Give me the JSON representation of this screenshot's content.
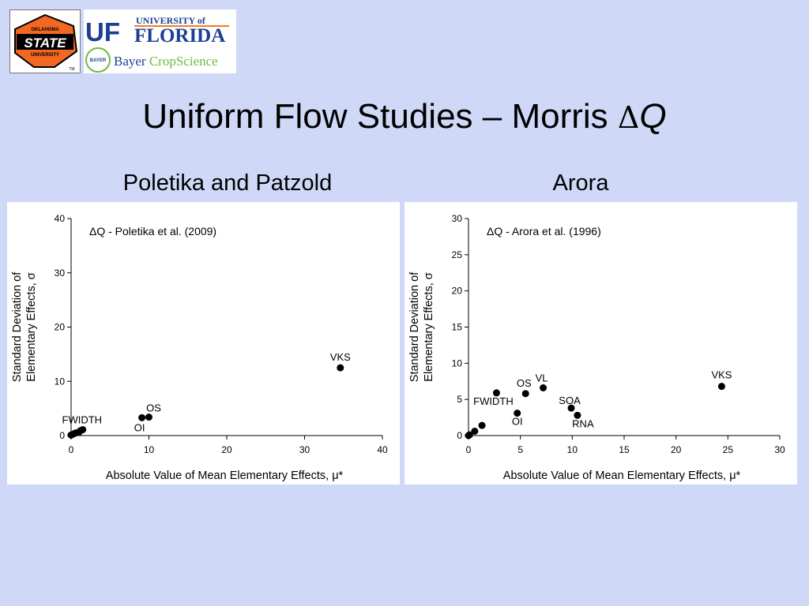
{
  "header": {
    "title": "Uniform Flow Studies – Morris ",
    "title_delta": "Δ",
    "title_var": "Q"
  },
  "logos": {
    "osu": {
      "line1": "OKLAHOMA",
      "line2": "STATE",
      "line3": "UNIVERSITY",
      "mark": "TM"
    },
    "uf": {
      "uf": "UF",
      "university_of": "UNIVERSITY of",
      "florida": "FLORIDA"
    },
    "bayer": {
      "cross": "BAYER",
      "bayer": "Bayer ",
      "cropscience": "CropScience"
    }
  },
  "subtitles": {
    "left": "Poletika and Patzold",
    "right": "Arora"
  },
  "colors": {
    "background": "#cfd9f7",
    "marker": "#000000",
    "uf_blue": "#1c3f94",
    "uf_orange": "#f47b20",
    "osu_orange": "#f26722",
    "bayer_green": "#6dbb3a"
  },
  "chart_data": [
    {
      "type": "scatter",
      "legend_text": "ΔQ - Poletika et al. (2009)",
      "legend_placement": "top-left",
      "xlabel": "Absolute Value of Mean Elementary Effects, μ*",
      "ylabel_line1": "Standard Deviation of",
      "ylabel_line2": "Elementary Effects, σ",
      "xlim": [
        0,
        40
      ],
      "ylim": [
        0,
        40
      ],
      "xticks": [
        0,
        10,
        20,
        30,
        40
      ],
      "yticks": [
        0,
        10,
        20,
        30,
        40
      ],
      "points": [
        {
          "x": 34.6,
          "y": 12.5,
          "label": "VKS"
        },
        {
          "x": 10.0,
          "y": 3.4,
          "label": "OS"
        },
        {
          "x": 9.1,
          "y": 3.3,
          "label": "OI"
        },
        {
          "x": 1.5,
          "y": 1.1,
          "label": "FWIDTH"
        },
        {
          "x": 1.2,
          "y": 0.9,
          "label": ""
        },
        {
          "x": 1.0,
          "y": 0.6,
          "label": ""
        },
        {
          "x": 0.6,
          "y": 0.5,
          "label": ""
        },
        {
          "x": 0.3,
          "y": 0.3,
          "label": ""
        },
        {
          "x": 0.0,
          "y": 0.1,
          "label": ""
        }
      ]
    },
    {
      "type": "scatter",
      "legend_text": "ΔQ - Arora et al. (1996)",
      "legend_placement": "top-left",
      "xlabel": "Absolute Value of Mean Elementary Effects, μ*",
      "ylabel_line1": "Standard Deviation of",
      "ylabel_line2": "Elementary Effects, σ",
      "xlim": [
        0,
        30
      ],
      "ylim": [
        0,
        30
      ],
      "xticks": [
        0,
        5,
        10,
        15,
        20,
        25,
        30
      ],
      "yticks": [
        0,
        5,
        10,
        15,
        20,
        25,
        30
      ],
      "points": [
        {
          "x": 24.4,
          "y": 6.8,
          "label": "VKS"
        },
        {
          "x": 7.2,
          "y": 6.6,
          "label": "VL"
        },
        {
          "x": 5.5,
          "y": 5.8,
          "label": "OS"
        },
        {
          "x": 2.7,
          "y": 5.9,
          "label": "FWIDTH"
        },
        {
          "x": 9.9,
          "y": 3.8,
          "label": "SOA"
        },
        {
          "x": 10.5,
          "y": 2.8,
          "label": "RNA"
        },
        {
          "x": 4.7,
          "y": 3.1,
          "label": "OI"
        },
        {
          "x": 1.3,
          "y": 1.4,
          "label": ""
        },
        {
          "x": 0.6,
          "y": 0.6,
          "label": ""
        },
        {
          "x": 0.1,
          "y": 0.1,
          "label": ""
        },
        {
          "x": 0.0,
          "y": 0.0,
          "label": ""
        }
      ]
    }
  ]
}
